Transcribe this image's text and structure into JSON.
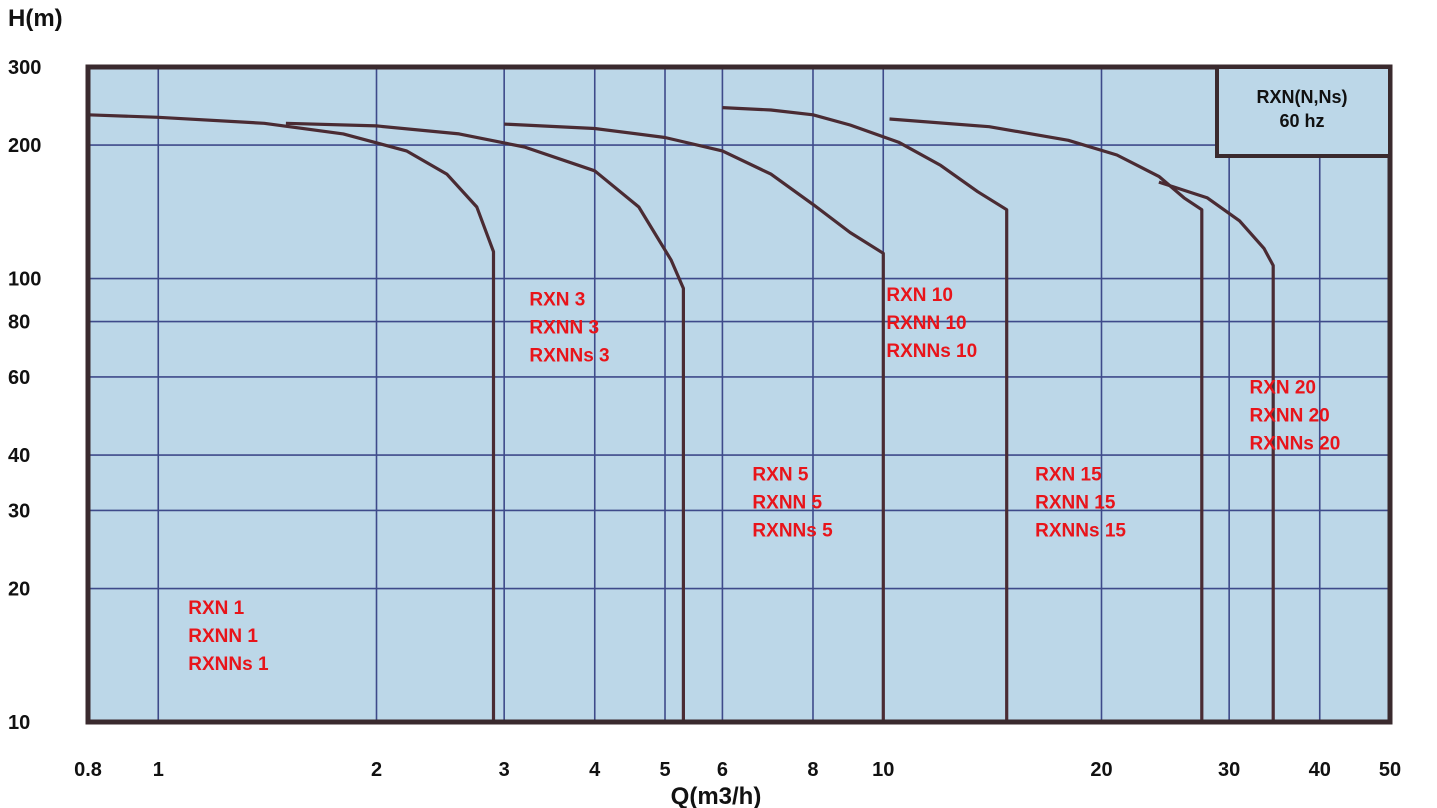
{
  "chart_data": {
    "type": "line",
    "title": "",
    "ylabel": "H(m)",
    "xlabel": "Q(m3/h)",
    "xscale": "log",
    "yscale": "log",
    "xlim": [
      0.8,
      50
    ],
    "ylim": [
      10,
      300
    ],
    "x_ticks": [
      "0.8",
      "1",
      "2",
      "3",
      "4",
      "5",
      "6",
      "8",
      "10",
      "20",
      "30",
      "40",
      "50"
    ],
    "x_tick_values": [
      0.8,
      1,
      2,
      3,
      4,
      5,
      6,
      8,
      10,
      20,
      30,
      40,
      50
    ],
    "y_ticks": [
      "10",
      "20",
      "30",
      "40",
      "60",
      "80",
      "100",
      "200",
      "300"
    ],
    "y_tick_values": [
      10,
      20,
      30,
      40,
      60,
      80,
      100,
      200,
      300
    ],
    "grid": true,
    "legend": {
      "line1": "RXN(N,Ns)",
      "line2": "60 hz",
      "placement": "top-right"
    },
    "series": [
      {
        "points": [
          [
            0.8,
            234
          ],
          [
            1.0,
            231
          ],
          [
            1.4,
            224
          ],
          [
            1.8,
            212
          ],
          [
            2.2,
            194
          ],
          [
            2.5,
            172
          ],
          [
            2.75,
            145
          ],
          [
            2.9,
            115
          ],
          [
            2.9,
            10
          ]
        ]
      },
      {
        "points": [
          [
            1.5,
            224
          ],
          [
            2.0,
            221
          ],
          [
            2.6,
            212
          ],
          [
            3.2,
            198
          ],
          [
            4.0,
            175
          ],
          [
            4.6,
            145
          ],
          [
            5.1,
            110
          ],
          [
            5.3,
            95
          ],
          [
            5.3,
            10
          ]
        ]
      },
      {
        "points": [
          [
            3.0,
            223
          ],
          [
            4.0,
            218
          ],
          [
            5.0,
            208
          ],
          [
            6.0,
            194
          ],
          [
            7.0,
            172
          ],
          [
            8.0,
            147
          ],
          [
            9.0,
            127
          ],
          [
            10.0,
            114
          ],
          [
            10.0,
            10
          ]
        ]
      },
      {
        "points": [
          [
            6.0,
            243
          ],
          [
            7.0,
            240
          ],
          [
            8.0,
            234
          ],
          [
            9.0,
            222
          ],
          [
            10.5,
            203
          ],
          [
            12.0,
            180
          ],
          [
            13.5,
            157
          ],
          [
            14.8,
            143
          ],
          [
            14.8,
            10
          ]
        ]
      },
      {
        "points": [
          [
            10.2,
            229
          ],
          [
            14.0,
            220
          ],
          [
            18.0,
            205
          ],
          [
            21.0,
            190
          ],
          [
            24.0,
            170
          ],
          [
            26.0,
            152
          ],
          [
            27.5,
            143
          ],
          [
            27.5,
            10
          ]
        ]
      },
      {
        "points": [
          [
            24.0,
            165
          ],
          [
            28.0,
            152
          ],
          [
            31.0,
            135
          ],
          [
            33.5,
            117
          ],
          [
            34.5,
            107
          ],
          [
            34.5,
            10
          ]
        ]
      }
    ],
    "annotations": [
      {
        "lines": [
          "RXN 1",
          "RXNN 1",
          "RXNNs 1"
        ],
        "x": 1.1,
        "y": 17.5
      },
      {
        "lines": [
          "RXN 3",
          "RXNN 3",
          "RXNNs 3"
        ],
        "x": 3.25,
        "y": 87
      },
      {
        "lines": [
          "RXN 5",
          "RXNN 5",
          "RXNNs 5"
        ],
        "x": 6.6,
        "y": 35
      },
      {
        "lines": [
          "RXN 10",
          "RXNN 10",
          "RXNNs 10"
        ],
        "x": 10.1,
        "y": 89
      },
      {
        "lines": [
          "RXN 15",
          "RXNN 15",
          "RXNNs 15"
        ],
        "x": 16.2,
        "y": 35
      },
      {
        "lines": [
          "RXN 20",
          "RXNN 20",
          "RXNNs 20"
        ],
        "x": 32.0,
        "y": 55
      }
    ],
    "colors": {
      "plot_background": "#bcd7e8",
      "grid": "#3e4a8a",
      "curve": "#4a2b33",
      "frame": "#3a2a2e",
      "label": "#e8141a"
    }
  }
}
